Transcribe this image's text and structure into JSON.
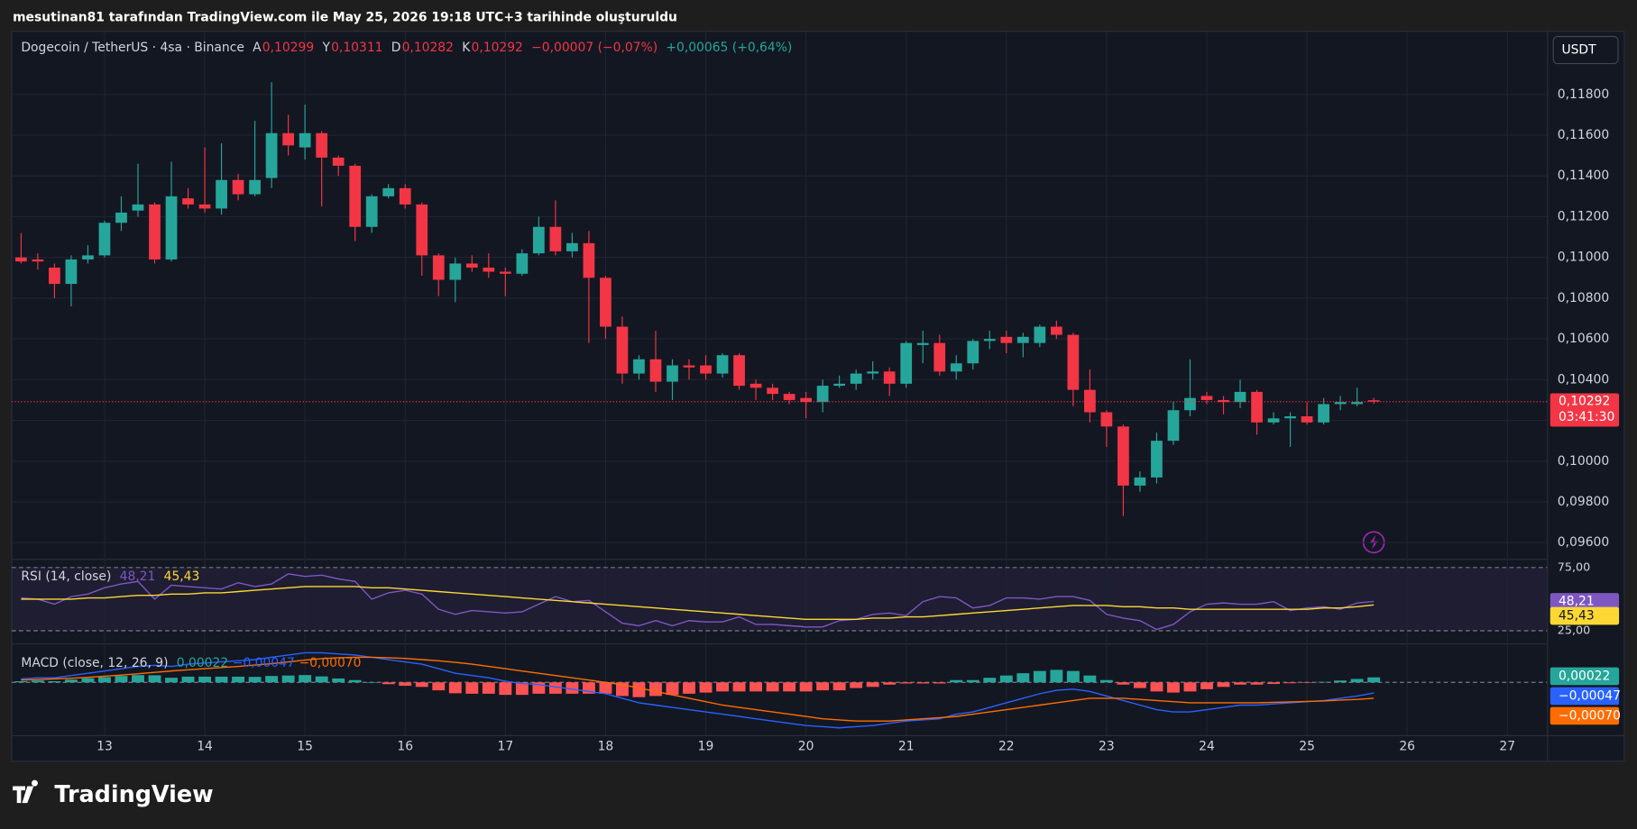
{
  "caption": "mesutinan81 tarafından TradingView.com ile May 25, 2026 19:18 UTC+3 tarihinde oluşturuldu",
  "footer": {
    "logo": "TradingView"
  },
  "chart_data": {
    "type": "candlestick",
    "title": "Dogecoin / TetherUS · 4sa · Binance",
    "legend": [
      {
        "key": "A",
        "label": "0,10299"
      },
      {
        "key": "Y",
        "label": "0,10311"
      },
      {
        "key": "D",
        "label": "0,10282"
      },
      {
        "key": "K",
        "label": "0,10292"
      }
    ],
    "change_labels": [
      "−0,00007 (−0,07%)",
      "+0,00065 (+0,64%)"
    ],
    "currency": "USDT",
    "last_price_label": "0,10292",
    "countdown": "03:41:30",
    "up_color": "#26a69a",
    "down_color": "#f23645",
    "open": [
      0.11,
      0.1099,
      0.1095,
      0.1087,
      0.1099,
      0.1101,
      0.1117,
      0.1123,
      0.1126,
      0.1099,
      0.1129,
      0.1126,
      0.1124,
      0.1138,
      0.1131,
      0.1139,
      0.1161,
      0.1154,
      0.1161,
      0.1149,
      0.1145,
      0.1115,
      0.113,
      0.1134,
      0.1126,
      0.1101,
      0.1089,
      0.1097,
      0.1095,
      0.1093,
      0.1092,
      0.1102,
      0.1115,
      0.1103,
      0.1107,
      0.109,
      0.1066,
      0.1043,
      0.105,
      0.1039,
      0.1047,
      0.1047,
      0.1043,
      0.1052,
      0.1038,
      0.1036,
      0.1033,
      0.1031,
      0.1029,
      0.1037,
      0.1038,
      0.1043,
      0.1044,
      0.1038,
      0.1057,
      0.1058,
      0.1044,
      0.1048,
      0.1059,
      0.1061,
      0.1058,
      0.1058,
      0.1066,
      0.1062,
      0.1035,
      0.1024,
      0.1017,
      0.0988,
      0.0992,
      0.101,
      0.1025,
      0.1032,
      0.103,
      0.1029,
      0.1034,
      0.1019,
      0.1021,
      0.1022,
      0.1019,
      0.1028,
      0.1028,
      0.10299
    ],
    "high": [
      0.1112,
      0.1102,
      0.1097,
      0.1101,
      0.1106,
      0.1118,
      0.113,
      0.1146,
      0.1127,
      0.1147,
      0.1134,
      0.1154,
      0.1156,
      0.1141,
      0.1167,
      0.1186,
      0.117,
      0.1175,
      0.1162,
      0.115,
      0.1146,
      0.1131,
      0.1136,
      0.1136,
      0.1127,
      0.1102,
      0.11,
      0.1101,
      0.1102,
      0.1095,
      0.1104,
      0.112,
      0.1128,
      0.1112,
      0.1113,
      0.1091,
      0.1071,
      0.1052,
      0.1064,
      0.105,
      0.105,
      0.1052,
      0.1053,
      0.1053,
      0.104,
      0.1038,
      0.1034,
      0.1034,
      0.104,
      0.1042,
      0.1045,
      0.1049,
      0.1046,
      0.1059,
      0.1064,
      0.1062,
      0.1052,
      0.106,
      0.1064,
      0.1064,
      0.1063,
      0.1067,
      0.1069,
      0.1063,
      0.1045,
      0.1025,
      0.1018,
      0.0995,
      0.1014,
      0.1029,
      0.105,
      0.1034,
      0.1032,
      0.104,
      0.1035,
      0.1024,
      0.1024,
      0.1029,
      0.1031,
      0.1032,
      0.1036,
      0.10311
    ],
    "low": [
      0.1097,
      0.1094,
      0.108,
      0.1076,
      0.1097,
      0.11,
      0.1113,
      0.112,
      0.1097,
      0.1098,
      0.1124,
      0.1122,
      0.1121,
      0.1128,
      0.113,
      0.1134,
      0.115,
      0.1148,
      0.1125,
      0.114,
      0.1108,
      0.1112,
      0.1129,
      0.1124,
      0.1091,
      0.1081,
      0.1078,
      0.1093,
      0.109,
      0.1081,
      0.1091,
      0.1101,
      0.1101,
      0.11,
      0.1058,
      0.106,
      0.1038,
      0.104,
      0.1034,
      0.103,
      0.104,
      0.104,
      0.1041,
      0.1035,
      0.103,
      0.103,
      0.1028,
      0.1021,
      0.1024,
      0.1036,
      0.1035,
      0.104,
      0.1032,
      0.1036,
      0.1048,
      0.1042,
      0.104,
      0.1045,
      0.1055,
      0.1053,
      0.1051,
      0.1056,
      0.106,
      0.1027,
      0.1019,
      0.1007,
      0.0973,
      0.0985,
      0.0989,
      0.1008,
      0.1022,
      0.1028,
      0.1023,
      0.1026,
      0.1013,
      0.1018,
      0.1007,
      0.1018,
      0.1018,
      0.1025,
      0.1027,
      0.10282
    ],
    "close": [
      0.1098,
      0.1098,
      0.1087,
      0.1099,
      0.1101,
      0.1117,
      0.1122,
      0.1126,
      0.1099,
      0.113,
      0.1126,
      0.1124,
      0.1138,
      0.1131,
      0.1138,
      0.1161,
      0.1155,
      0.1161,
      0.1149,
      0.1145,
      0.1115,
      0.113,
      0.1134,
      0.1126,
      0.1101,
      0.1089,
      0.1097,
      0.1095,
      0.1093,
      0.1092,
      0.1102,
      0.1115,
      0.1103,
      0.1107,
      0.109,
      0.1066,
      0.1043,
      0.105,
      0.1039,
      0.1047,
      0.1046,
      0.1043,
      0.1052,
      0.1037,
      0.1036,
      0.1033,
      0.103,
      0.1029,
      0.1037,
      0.1038,
      0.1043,
      0.1044,
      0.1038,
      0.1058,
      0.1058,
      0.1044,
      0.1048,
      0.1059,
      0.106,
      0.1058,
      0.1061,
      0.1066,
      0.1062,
      0.1035,
      0.1024,
      0.1017,
      0.0988,
      0.0992,
      0.101,
      0.1025,
      0.1031,
      0.103,
      0.1029,
      0.1034,
      0.1019,
      0.1021,
      0.1022,
      0.1019,
      0.1028,
      0.1029,
      0.1029,
      0.10292
    ],
    "ylim": [
      0.0952,
      0.1211
    ],
    "yticks": [
      {
        "value": 0.118,
        "label": "0,11800"
      },
      {
        "value": 0.116,
        "label": "0,11600"
      },
      {
        "value": 0.114,
        "label": "0,11400"
      },
      {
        "value": 0.112,
        "label": "0,11200"
      },
      {
        "value": 0.11,
        "label": "0,11000"
      },
      {
        "value": 0.108,
        "label": "0,10800"
      },
      {
        "value": 0.106,
        "label": "0,10600"
      },
      {
        "value": 0.104,
        "label": "0,10400"
      },
      {
        "value": 0.102,
        "label": "0,10200"
      },
      {
        "value": 0.1,
        "label": "0,10000"
      },
      {
        "value": 0.098,
        "label": "0,09800"
      },
      {
        "value": 0.096,
        "label": "0,09600"
      }
    ],
    "grid": true,
    "x_labels": [
      "13",
      "14",
      "15",
      "16",
      "17",
      "18",
      "19",
      "20",
      "21",
      "22",
      "23",
      "24",
      "25",
      "26",
      "27"
    ],
    "rsi": {
      "name": "RSI (14, close)",
      "ylim": [
        15,
        81
      ],
      "yticks": [
        {
          "value": 75,
          "label": "75,00"
        },
        {
          "value": 25,
          "label": "25,00"
        }
      ],
      "series": [
        {
          "color": "#7e57c2",
          "value_label": "48,21",
          "values": [
            51,
            50,
            46,
            52,
            54,
            59,
            62,
            64,
            50,
            61,
            60,
            59,
            58,
            63,
            60,
            62,
            70,
            68,
            69,
            66,
            64,
            50,
            55,
            57,
            54,
            42,
            38,
            41,
            40,
            39,
            40,
            46,
            52,
            48,
            49,
            40,
            31,
            29,
            33,
            29,
            33,
            32,
            32,
            36,
            30,
            30,
            29,
            28,
            28,
            33,
            34,
            38,
            39,
            37,
            48,
            52,
            51,
            43,
            45,
            51,
            51,
            50,
            52,
            52,
            49,
            38,
            35,
            33,
            26,
            30,
            40,
            46,
            47,
            46,
            46,
            48,
            41,
            43,
            44,
            42,
            47,
            48.21
          ]
        },
        {
          "color": "#fdd835",
          "value_label": "45,43",
          "values": [
            50,
            50,
            50,
            50,
            51,
            51,
            52,
            53,
            53,
            54,
            54,
            55,
            55,
            56,
            57,
            58,
            59,
            60,
            60,
            60,
            60,
            59,
            59,
            58,
            57,
            56,
            55,
            54,
            53,
            52,
            51,
            50,
            49,
            48,
            47,
            46,
            45,
            44,
            43,
            42,
            41,
            40,
            39,
            38,
            37,
            36,
            35,
            34,
            34,
            34,
            34,
            35,
            35,
            36,
            36,
            37,
            38,
            39,
            40,
            41,
            42,
            43,
            44,
            45,
            45,
            45,
            44,
            44,
            43,
            43,
            42,
            42,
            42,
            42,
            42,
            42,
            42,
            42,
            43,
            43,
            44,
            45.43
          ]
        }
      ]
    },
    "macd": {
      "name": "MACD (close, 12, 26, 9)",
      "histogram": {
        "up_color": "#26a69a",
        "down_color": "#ff5252",
        "value_label": "0,00022",
        "values": [
          5e-05,
          8e-05,
          5e-05,
          0.00012,
          0.00018,
          0.00023,
          0.00028,
          0.00032,
          0.00031,
          0.0002,
          0.00025,
          0.00025,
          0.00025,
          0.00025,
          0.00024,
          0.00028,
          0.0003,
          0.00032,
          0.00026,
          0.00017,
          0.0001,
          0,
          -8e-05,
          -0.00015,
          -0.0002,
          -0.00035,
          -0.00048,
          -0.0005,
          -0.0005,
          -0.00055,
          -0.00055,
          -0.0005,
          -0.0005,
          -0.0005,
          -0.0005,
          -0.0005,
          -0.0006,
          -0.00065,
          -0.0006,
          -0.00055,
          -0.0005,
          -0.00045,
          -0.0004,
          -0.0004,
          -0.0004,
          -0.0004,
          -0.0004,
          -0.0004,
          -0.00035,
          -0.00035,
          -0.00025,
          -0.0002,
          -0.0001,
          -5e-05,
          -5e-05,
          -5e-05,
          0.0001,
          0.0001,
          0.0002,
          0.0003,
          0.0004,
          0.0005,
          0.00055,
          0.0005,
          0.0003,
          0.0001,
          -0.0001,
          -0.00025,
          -0.0004,
          -0.00045,
          -0.0004,
          -0.0003,
          -0.0002,
          -0.0001,
          -0.0001,
          -7e-05,
          -4e-05,
          -1e-05,
          2e-05,
          8e-05,
          0.00015,
          0.00022
        ]
      },
      "macd_line": {
        "color": "#2962ff",
        "value_label": "−0,00047",
        "values": [
          0.00015,
          0.0002,
          0.0002,
          0.0003,
          0.0004,
          0.0005,
          0.0006,
          0.0007,
          0.00075,
          0.0007,
          0.0008,
          0.00085,
          0.0009,
          0.00095,
          0.001,
          0.0011,
          0.0012,
          0.0013,
          0.0013,
          0.00125,
          0.0012,
          0.0011,
          0.001,
          0.0009,
          0.0008,
          0.0006,
          0.0004,
          0.0003,
          0.0002,
          5e-05,
          -5e-05,
          -0.0001,
          -0.0002,
          -0.0003,
          -0.0004,
          -0.0005,
          -0.0007,
          -0.0009,
          -0.001,
          -0.0011,
          -0.0012,
          -0.0013,
          -0.0014,
          -0.0015,
          -0.0016,
          -0.0017,
          -0.0018,
          -0.0019,
          -0.00195,
          -0.002,
          -0.00195,
          -0.0019,
          -0.0018,
          -0.0017,
          -0.00165,
          -0.0016,
          -0.0014,
          -0.0013,
          -0.0011,
          -0.0009,
          -0.0007,
          -0.0005,
          -0.00035,
          -0.0003,
          -0.0004,
          -0.0006,
          -0.0008,
          -0.001,
          -0.0012,
          -0.0013,
          -0.0013,
          -0.0012,
          -0.0011,
          -0.001,
          -0.001,
          -0.00095,
          -0.0009,
          -0.00085,
          -0.0008,
          -0.0007,
          -0.0006,
          -0.00047
        ]
      },
      "signal_line": {
        "color": "#ff6d00",
        "value_label": "−0,00070",
        "values": [
          0.0001,
          0.00012,
          0.00015,
          0.00018,
          0.00022,
          0.00027,
          0.00032,
          0.00038,
          0.00044,
          0.0005,
          0.00055,
          0.0006,
          0.00065,
          0.0007,
          0.00076,
          0.00082,
          0.0009,
          0.00098,
          0.00104,
          0.00108,
          0.0011,
          0.0011,
          0.00108,
          0.00105,
          0.001,
          0.00095,
          0.00088,
          0.0008,
          0.0007,
          0.0006,
          0.0005,
          0.0004,
          0.0003,
          0.0002,
          0.0001,
          0,
          -0.0001,
          -0.00025,
          -0.0004,
          -0.00055,
          -0.0007,
          -0.00085,
          -0.001,
          -0.0011,
          -0.0012,
          -0.0013,
          -0.0014,
          -0.0015,
          -0.0016,
          -0.00165,
          -0.0017,
          -0.0017,
          -0.0017,
          -0.00165,
          -0.0016,
          -0.00155,
          -0.0015,
          -0.0014,
          -0.0013,
          -0.0012,
          -0.0011,
          -0.001,
          -0.0009,
          -0.0008,
          -0.0007,
          -0.0007,
          -0.0007,
          -0.00075,
          -0.0008,
          -0.00085,
          -0.0009,
          -0.0009,
          -0.0009,
          -0.0009,
          -0.0009,
          -0.00088,
          -0.00086,
          -0.00084,
          -0.00082,
          -0.00078,
          -0.00075,
          -0.0007
        ]
      }
    }
  }
}
